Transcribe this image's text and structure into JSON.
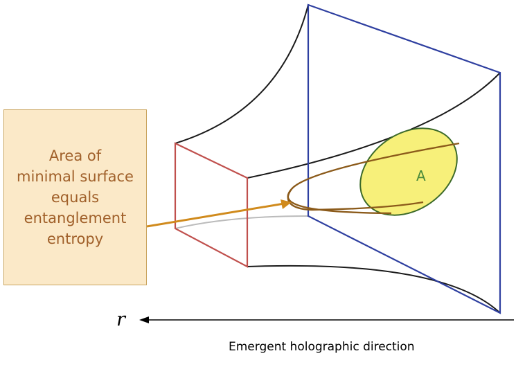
{
  "callout": {
    "lines": [
      "Area of",
      "minimal surface",
      "equals",
      "entanglement",
      "entropy"
    ]
  },
  "region": {
    "label": "A"
  },
  "axis": {
    "variable": "r",
    "caption": "Emergent holographic direction"
  },
  "colors": {
    "boundary_plane": "#2e3fa0",
    "ir_plane": "#c0504d",
    "bulk_edges": "#1a1a1a",
    "hidden_edge": "#bbbbbb",
    "region_fill": "#f7f07a",
    "region_stroke": "#3c6a2a",
    "minimal_surface": "#8b5a1a",
    "callout_arrow": "#d08a1c",
    "callout_fill": "#fbe9c8",
    "callout_text": "#a0602a"
  }
}
